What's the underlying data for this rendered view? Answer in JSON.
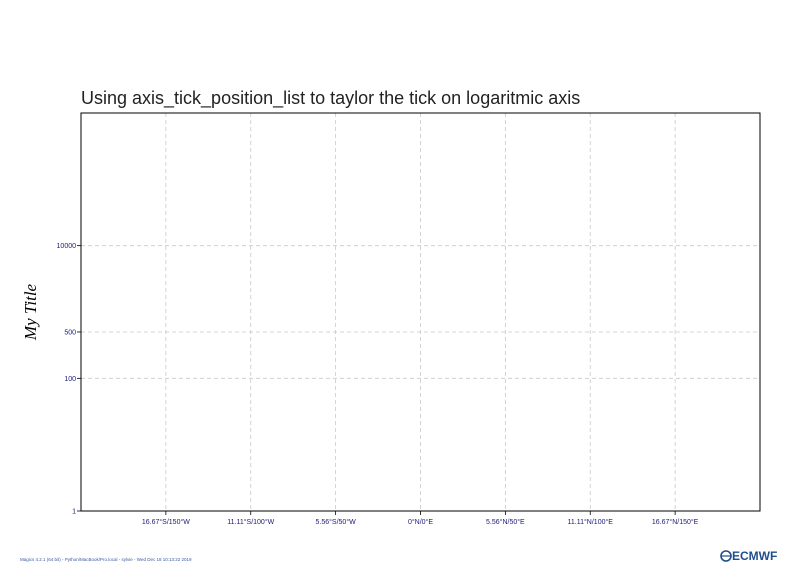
{
  "chart_data": {
    "type": "scatter",
    "title": "Using axis_tick_position_list to taylor the tick on logaritmic axis",
    "ylabel": "My Title",
    "xlabel": "",
    "x_scale": "linear",
    "y_scale": "log",
    "xlim": [
      -200,
      200
    ],
    "ylim": [
      1,
      1000000
    ],
    "x_ticks": [
      -150,
      -100,
      -50,
      0,
      50,
      100,
      150
    ],
    "x_tick_labels": [
      "16.67°S/150°W",
      "11.11°S/100°W",
      "5.56°S/50°W",
      "0°N/0°E",
      "5.56°N/50°E",
      "11.11°N/100°E",
      "16.67°N/150°E"
    ],
    "y_ticks": [
      1,
      100,
      500,
      10000
    ],
    "y_tick_labels": [
      "1",
      "100",
      "500",
      "10000"
    ],
    "grid": true,
    "grid_style": "dashed",
    "series": []
  },
  "footer": {
    "text": "Magics 4.2.1 (64 bit) - Python/MacBook/Pro.local - sylvie - Wed Dec 18 10:13:22 2019"
  },
  "logo": {
    "text": "ECMWF"
  },
  "colors": {
    "frame": "#000000",
    "grid": "#c8c8c8",
    "tick_label": "#1a1a7a",
    "logo": "#1f4e8c"
  }
}
